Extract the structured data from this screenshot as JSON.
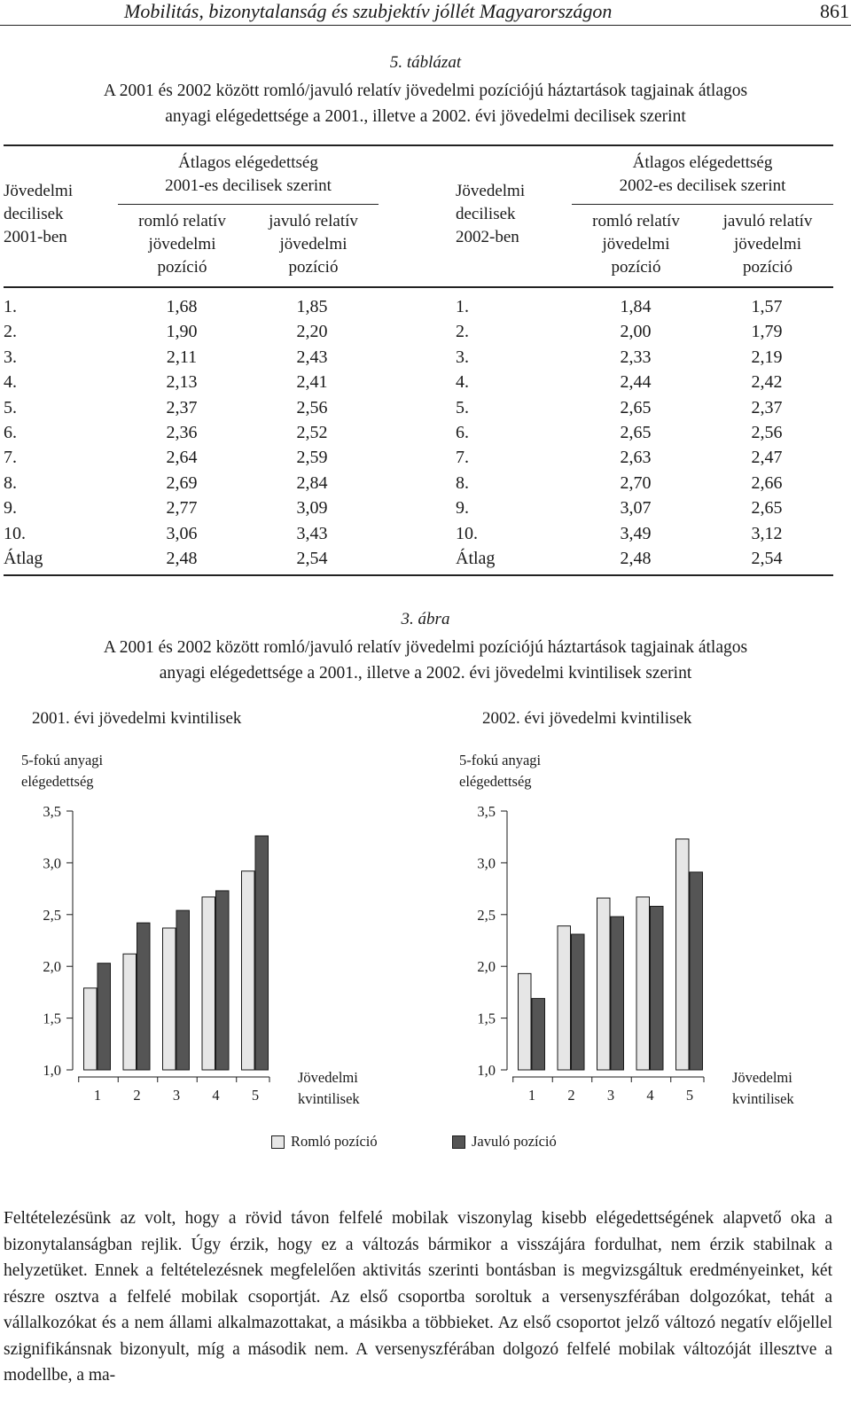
{
  "header": {
    "running_title": "Mobilitás, bizonytalanság és szubjektív jóllét Magyarországon",
    "page_number": "861"
  },
  "table": {
    "label": "5. táblázat",
    "caption_line1": "A 2001 és 2002 között romló/javuló relatív jövedelmi pozíciójú háztartások tagjainak átlagos",
    "caption_line2": "anyagi elégedettsége a 2001., illetve a 2002. évi jövedelmi decilisek szerint",
    "left": {
      "row_header": [
        "Jövedelmi",
        "decilisek",
        "2001-ben"
      ],
      "group_header": [
        "Átlagos elégedettség",
        "2001-es decilisek szerint"
      ],
      "col1_header": [
        "romló relatív",
        "jövedelmi",
        "pozíció"
      ],
      "col2_header": [
        "javuló relatív",
        "jövedelmi",
        "pozíció"
      ],
      "rows": [
        [
          "1.",
          "1,68",
          "1,85"
        ],
        [
          "2.",
          "1,90",
          "2,20"
        ],
        [
          "3.",
          "2,11",
          "2,43"
        ],
        [
          "4.",
          "2,13",
          "2,41"
        ],
        [
          "5.",
          "2,37",
          "2,56"
        ],
        [
          "6.",
          "2,36",
          "2,52"
        ],
        [
          "7.",
          "2,64",
          "2,59"
        ],
        [
          "8.",
          "2,69",
          "2,84"
        ],
        [
          "9.",
          "2,77",
          "3,09"
        ],
        [
          "10.",
          "3,06",
          "3,43"
        ],
        [
          "Átlag",
          "2,48",
          "2,54"
        ]
      ]
    },
    "right": {
      "row_header": [
        "Jövedelmi",
        "decilisek",
        "2002-ben"
      ],
      "group_header": [
        "Átlagos elégedettség",
        "2002-es decilisek szerint"
      ],
      "col1_header": [
        "romló relatív",
        "jövedelmi",
        "pozíció"
      ],
      "col2_header": [
        "javuló relatív",
        "jövedelmi",
        "pozíció"
      ],
      "rows": [
        [
          "1.",
          "1,84",
          "1,57"
        ],
        [
          "2.",
          "2,00",
          "1,79"
        ],
        [
          "3.",
          "2,33",
          "2,19"
        ],
        [
          "4.",
          "2,44",
          "2,42"
        ],
        [
          "5.",
          "2,65",
          "2,37"
        ],
        [
          "6.",
          "2,65",
          "2,56"
        ],
        [
          "7.",
          "2,63",
          "2,47"
        ],
        [
          "8.",
          "2,70",
          "2,66"
        ],
        [
          "9.",
          "3,07",
          "2,65"
        ],
        [
          "10.",
          "3,49",
          "3,12"
        ],
        [
          "Átlag",
          "2,48",
          "2,54"
        ]
      ]
    }
  },
  "figure": {
    "label": "3. ábra",
    "caption_line1": "A 2001 és 2002 között romló/javuló relatív jövedelmi pozíciójú háztartások tagjainak átlagos",
    "caption_line2": "anyagi elégedettsége a 2001., illetve a 2002. évi jövedelmi kvintilisek szerint",
    "legend": {
      "romlo": "Romló pozíció",
      "javulo": "Javuló pozíció"
    },
    "colors": {
      "romlo": "#e6e6e6",
      "javulo": "#555555",
      "stroke": "#1a1a1a"
    }
  },
  "chart_data": [
    {
      "type": "bar",
      "title": "2001. évi jövedelmi kvintilisek",
      "ylabel": [
        "5-fokú anyagi",
        "elégedettség"
      ],
      "xlabel": [
        "Jövedelmi",
        "kvintilisek"
      ],
      "categories": [
        "1",
        "2",
        "3",
        "4",
        "5"
      ],
      "ylim": [
        1.0,
        3.5
      ],
      "yticks": [
        "1,0",
        "1,5",
        "2,0",
        "2,5",
        "3,0",
        "3,5"
      ],
      "series": [
        {
          "name": "Romló pozíció",
          "values": [
            1.79,
            2.12,
            2.37,
            2.67,
            2.92
          ]
        },
        {
          "name": "Javuló pozíció",
          "values": [
            2.03,
            2.42,
            2.54,
            2.73,
            3.26
          ]
        }
      ]
    },
    {
      "type": "bar",
      "title": "2002. évi jövedelmi kvintilisek",
      "ylabel": [
        "5-fokú anyagi",
        "elégedettség"
      ],
      "xlabel": [
        "Jövedelmi",
        "kvintilisek"
      ],
      "categories": [
        "1",
        "2",
        "3",
        "4",
        "5"
      ],
      "ylim": [
        1.0,
        3.5
      ],
      "yticks": [
        "1,0",
        "1,5",
        "2,0",
        "2,5",
        "3,0",
        "3,5"
      ],
      "series": [
        {
          "name": "Romló pozíció",
          "values": [
            1.93,
            2.39,
            2.66,
            2.67,
            3.23
          ]
        },
        {
          "name": "Javuló pozíció",
          "values": [
            1.69,
            2.31,
            2.48,
            2.58,
            2.91
          ]
        }
      ]
    }
  ],
  "body_text": "Feltételezésünk az volt, hogy a rövid távon felfelé mobilak viszonylag kisebb elégedettségének alapvető oka a bizonytalanságban rejlik. Úgy érzik, hogy ez a változás bármikor a visszájára fordulhat, nem érzik stabilnak a helyzetüket. Ennek a feltételezésnek megfelelően aktivitás szerinti bontásban is megvizsgáltuk eredményeinket, két részre osztva a felfelé mobilak csoportját. Az első csoportba soroltuk a versenyszférában dolgozókat, tehát a vállalkozókat és a nem állami alkalmazottakat, a másikba a többieket. Az első csoportot jelző változó negatív előjellel szignifikánsnak bizonyult, míg a második nem. A versenyszférában dolgozó felfelé mobilak változóját illesztve a modellbe, a ma-"
}
